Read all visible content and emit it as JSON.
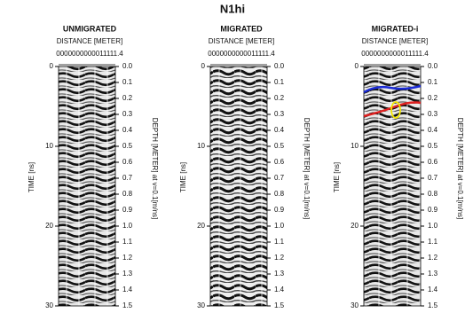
{
  "title": "N1hi",
  "panels": [
    {
      "title": "UNMIGRATED",
      "x_label": "DISTANCE [METER]",
      "x_ticks": "0000000000011111.4",
      "y_label": "TIME [ns]",
      "y_ticks": [
        "0",
        "10",
        "20",
        "30"
      ],
      "y2_label": "DEPTH [METER] at v=0.1[m/ns]",
      "y2_ticks": [
        "0.0",
        "0.1",
        "0.2",
        "0.3",
        "0.4",
        "0.5",
        "0.6",
        "0.7",
        "0.8",
        "0.9",
        "1.0",
        "1.1",
        "1.2",
        "1.3",
        "1.4",
        "1.5"
      ]
    },
    {
      "title": "MIGRATED",
      "x_label": "DISTANCE [METER]",
      "x_ticks": "0000000000011111.4",
      "y_label": "TIME [ns]",
      "y_ticks": [
        "0",
        "10",
        "20",
        "30"
      ],
      "y2_label": "DEPTH [METER] at v=0.1[m/ns]",
      "y2_ticks": [
        "0.0",
        "0.1",
        "0.2",
        "0.3",
        "0.4",
        "0.5",
        "0.6",
        "0.7",
        "0.8",
        "0.9",
        "1.0",
        "1.1",
        "1.2",
        "1.3",
        "1.4",
        "1.5"
      ]
    },
    {
      "title": "MIGRATED-i",
      "x_label": "DISTANCE [METER]",
      "x_ticks": "0000000000011111.4",
      "y_label": "TIME [ns]",
      "y_ticks": [
        "0",
        "10",
        "20",
        "30"
      ],
      "y2_label": "DEPTH [METER] at v=0.1[m/ns]",
      "y2_ticks": [
        "0.0",
        "0.1",
        "0.2",
        "0.3",
        "0.4",
        "0.5",
        "0.6",
        "0.7",
        "0.8",
        "0.9",
        "1.0",
        "1.1",
        "1.2",
        "1.3",
        "1.4",
        "1.5"
      ]
    }
  ]
}
